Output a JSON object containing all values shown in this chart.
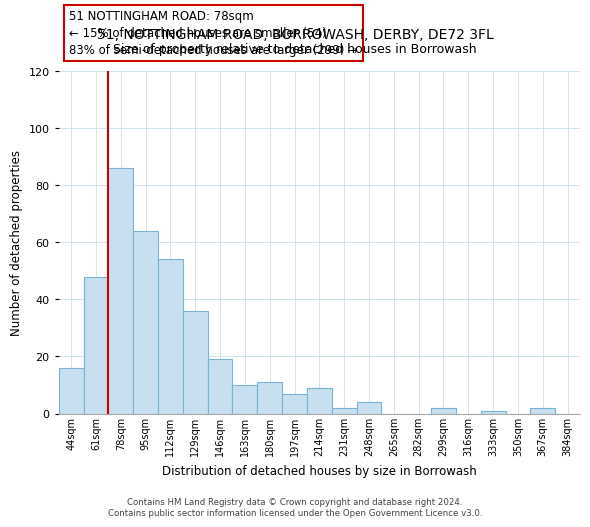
{
  "title": "51, NOTTINGHAM ROAD, BORROWASH, DERBY, DE72 3FL",
  "subtitle": "Size of property relative to detached houses in Borrowash",
  "xlabel": "Distribution of detached houses by size in Borrowash",
  "ylabel": "Number of detached properties",
  "bar_color": "#c8dff0",
  "bar_edge_color": "#7ab3d4",
  "marker_line_color": "#cc0000",
  "marker_index": 2,
  "annotation_title": "51 NOTTINGHAM ROAD: 78sqm",
  "annotation_line1": "← 15% of detached houses are smaller (54)",
  "annotation_line2": "83% of semi-detached houses are larger (299) →",
  "categories": [
    "44sqm",
    "61sqm",
    "78sqm",
    "95sqm",
    "112sqm",
    "129sqm",
    "146sqm",
    "163sqm",
    "180sqm",
    "197sqm",
    "214sqm",
    "231sqm",
    "248sqm",
    "265sqm",
    "282sqm",
    "299sqm",
    "316sqm",
    "333sqm",
    "350sqm",
    "367sqm",
    "384sqm"
  ],
  "values": [
    16,
    48,
    86,
    64,
    54,
    36,
    19,
    10,
    11,
    7,
    9,
    2,
    4,
    0,
    0,
    2,
    0,
    1,
    0,
    2,
    0
  ],
  "ylim": [
    0,
    120
  ],
  "yticks": [
    0,
    20,
    40,
    60,
    80,
    100,
    120
  ],
  "background_color": "#ffffff",
  "footer_line1": "Contains HM Land Registry data © Crown copyright and database right 2024.",
  "footer_line2": "Contains public sector information licensed under the Open Government Licence v3.0."
}
